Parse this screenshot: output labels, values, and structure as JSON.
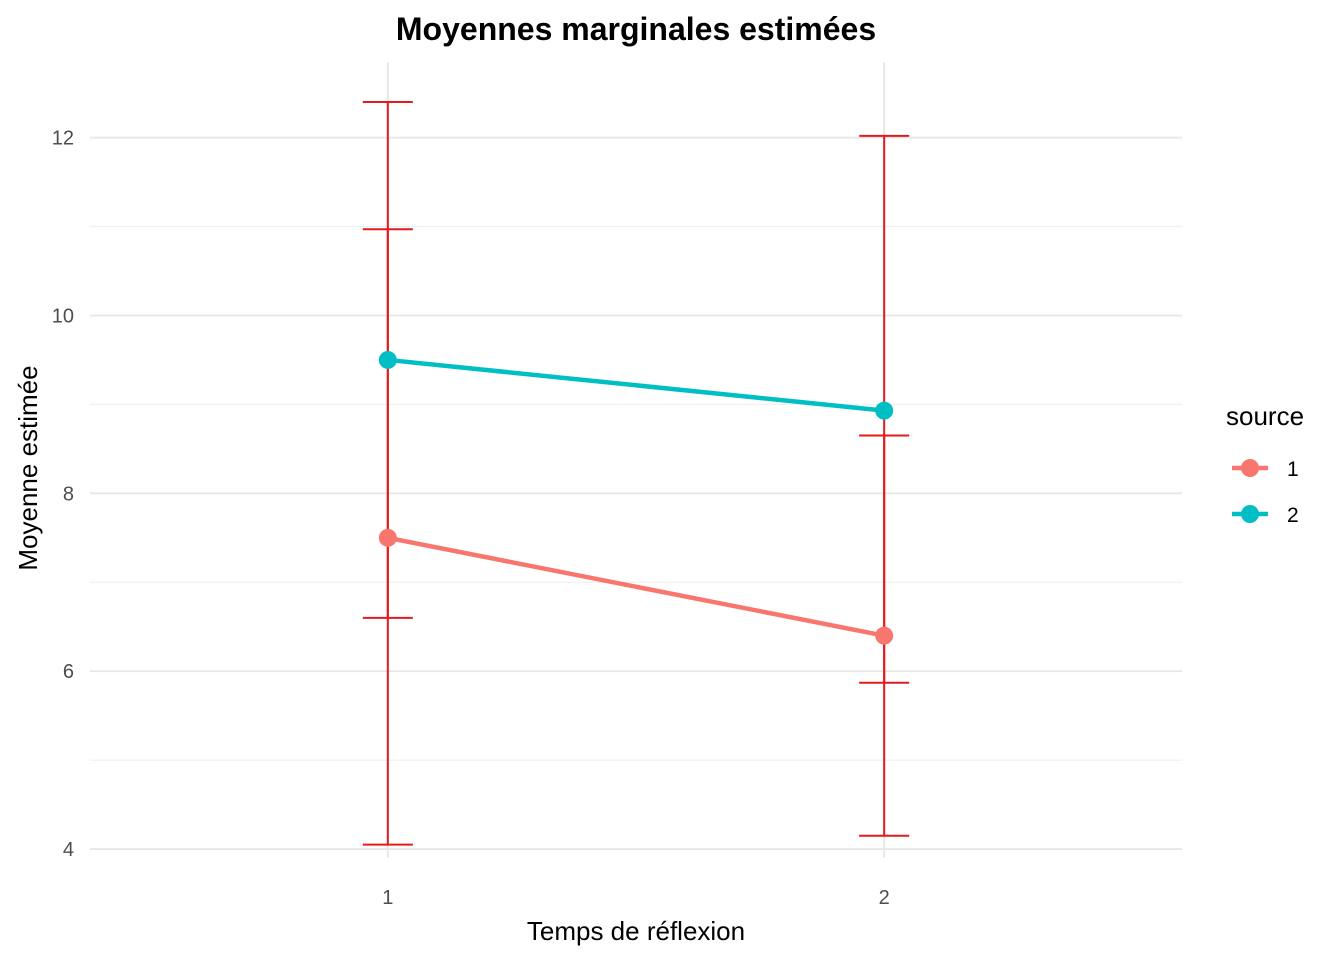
{
  "chart_data": {
    "type": "line",
    "title": "Moyennes marginales estimées",
    "xlabel": "Temps de réflexion",
    "ylabel": "Moyenne estimée",
    "x": [
      "1",
      "2"
    ],
    "xlim": [
      0.4,
      2.6
    ],
    "ylim": [
      3.9,
      12.85
    ],
    "yticks": [
      4,
      6,
      8,
      10,
      12
    ],
    "grid": true,
    "legend": {
      "title": "source",
      "position": "right"
    },
    "series": [
      {
        "name": "1",
        "color": "#F8766D",
        "values": [
          7.5,
          6.4
        ]
      },
      {
        "name": "2",
        "color": "#00BFC4",
        "values": [
          9.5,
          8.93
        ]
      }
    ],
    "error_bar_color": "#E41A1C",
    "error_bars": [
      {
        "x": "1",
        "low": 4.05,
        "high": 12.4
      },
      {
        "x": "1",
        "low": 6.6,
        "high": 10.97
      },
      {
        "x": "2",
        "low": 4.15,
        "high": 12.02
      },
      {
        "x": "2",
        "low": 5.87,
        "high": 8.65
      }
    ]
  }
}
